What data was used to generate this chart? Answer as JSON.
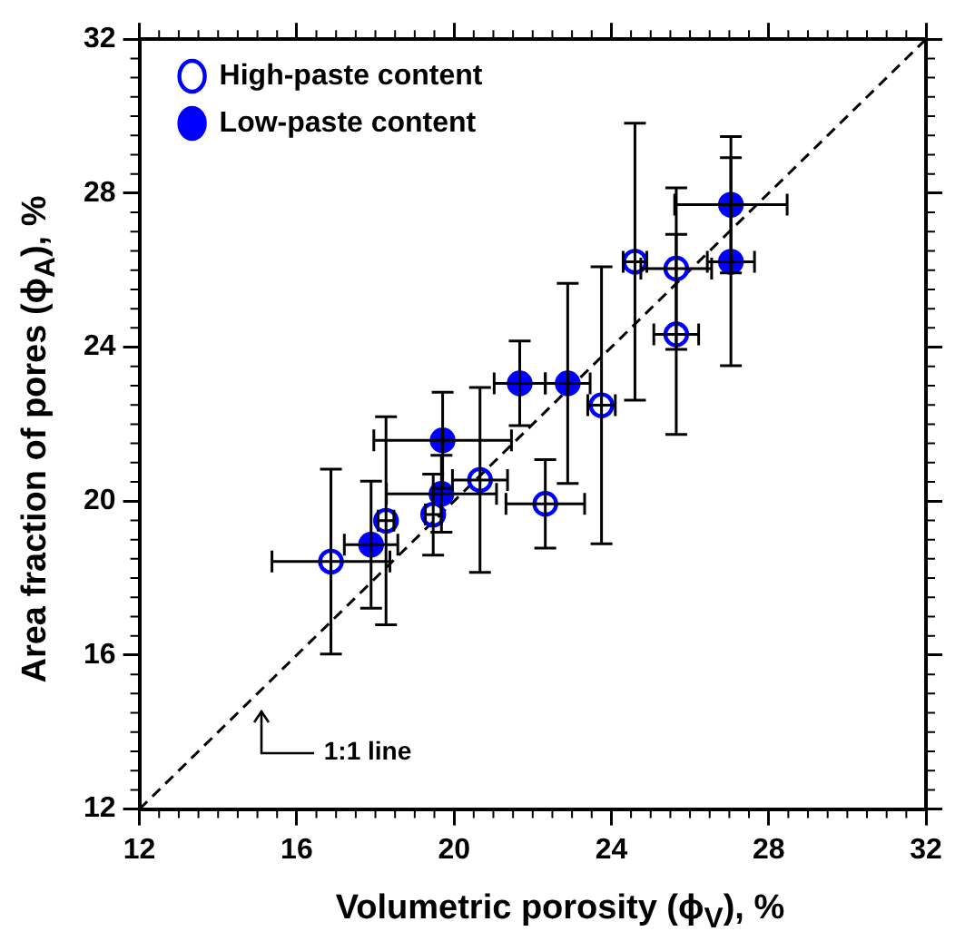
{
  "chart_data": {
    "type": "scatter",
    "xlabel": "Volumetric porosity (ϕ$_{V}$), %",
    "ylabel": "Area fraction of pores (ϕ$_{A}$), %",
    "xlim": [
      12,
      32
    ],
    "ylim": [
      12,
      32
    ],
    "xticks": [
      12,
      16,
      20,
      24,
      28,
      32
    ],
    "yticks": [
      12,
      16,
      20,
      24,
      28,
      32
    ],
    "grid": false,
    "legend": "top left",
    "marker": "circle",
    "annotations": [
      "1:1 line"
    ],
    "series": [
      {
        "name": "High-paste content",
        "color": "#0000ff",
        "x": [
          16.87,
          18.27,
          19.47,
          20.66,
          22.32,
          23.75,
          24.6,
          25.65,
          25.65
        ],
        "values": [
          18.43,
          19.49,
          19.65,
          20.55,
          19.93,
          22.49,
          26.22,
          26.04,
          24.33
        ],
        "errors": [
          2.4,
          2.7,
          1.05,
          2.4,
          1.15,
          3.6,
          3.6,
          2.1,
          2.6
        ],
        "xerrors": [
          1.5,
          0.2,
          0.2,
          0.7,
          1.0,
          0.35,
          0.3,
          0.9,
          0.57
        ]
      },
      {
        "name": "Low-paste content",
        "color": "#0000ff",
        "x": [
          17.89,
          19.68,
          19.71,
          21.67,
          22.89,
          27.04,
          27.04
        ],
        "values": [
          18.87,
          20.19,
          21.58,
          23.06,
          23.06,
          27.7,
          26.22
        ],
        "errors": [
          1.65,
          1.0,
          1.25,
          1.1,
          2.6,
          1.77,
          2.7
        ],
        "xerrors": [
          0.68,
          1.4,
          1.75,
          0.65,
          0.57,
          1.43,
          0.6
        ]
      },
      {
        "type": "line",
        "color": "#000000",
        "line_style": "dashed",
        "marker": "none",
        "x": [
          12,
          32
        ],
        "values": [
          12,
          32
        ]
      }
    ]
  }
}
